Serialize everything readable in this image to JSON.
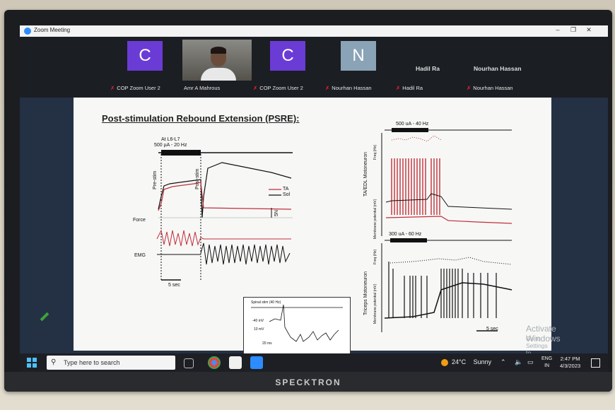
{
  "window": {
    "title": "Zoom Meeting",
    "minimize": "–",
    "maximize": "❐",
    "close": "✕"
  },
  "participants": [
    {
      "initial": "C",
      "name": "COP Zoom User 2",
      "color": "#6b3bd6"
    },
    {
      "name": "Amr A Mahrous"
    },
    {
      "initial": "C",
      "name": "COP Zoom User 2",
      "color": "#6b3bd6"
    },
    {
      "initial": "N",
      "name": "Nourhan Hassan",
      "color": "#8aa3b6"
    },
    {
      "title": "Hadil Ra",
      "name": "Hadil Ra"
    },
    {
      "title": "Nourhan Hassan",
      "name": "Nourhan Hassan"
    }
  ],
  "slide": {
    "title": "Post-stimulation Rebound Extension (PSRE):",
    "left_figure": {
      "stim_site": "At L6-L7",
      "stim_params": "500 µA - 20 Hz",
      "pre_stim": "Pre-stim",
      "post_stim": "Post-stim",
      "legend_ta": "TA",
      "legend_sol": "Sol",
      "scale": "5N",
      "force": "Force",
      "emg": "EMG",
      "time_scale": "5 sec"
    },
    "right_top": {
      "stim": "500 uA - 40 Hz",
      "ylabel_main": "TA/EDL Motoneuron",
      "ylabel_freq": "Freq (Hz)",
      "ylabel_mp": "Membrane potential (mV)",
      "freq_ticks": [
        "70",
        "60",
        "50",
        "40",
        "30",
        "20",
        "10",
        "0"
      ],
      "mp_ticks": [
        "20",
        "10",
        "0",
        "-10",
        "-20",
        "-30",
        "-40",
        "-50",
        "-60",
        "-70",
        "-80"
      ]
    },
    "right_bottom": {
      "stim": "300 uA - 60 Hz",
      "ylabel_main": "Triceps Motoneuron",
      "ylabel_freq": "Freq (Hz)",
      "ylabel_mp": "Membrane potential (mV)",
      "freq_ticks": [
        "70",
        "60",
        "50",
        "40",
        "30",
        "20",
        "10",
        "0"
      ],
      "mp_ticks": [
        "20",
        "10",
        "0",
        "-10",
        "-20",
        "-30",
        "-40",
        "-50",
        "-60",
        "-70"
      ],
      "time_scale": "5 sec"
    },
    "inset": {
      "label": "Spinal stim (40 Hz)",
      "mv": "-40 mV",
      "scale_v": "10 mV",
      "scale_t": "20 ms"
    },
    "watermark_title": "Activate Windows",
    "watermark_sub": "Go to Settings to activate Windows."
  },
  "taskbar": {
    "search_placeholder": "Type here to search",
    "temperature": "24°C",
    "weather": "Sunny",
    "lang1": "ENG",
    "lang2": "IN",
    "time": "2:47 PM",
    "date": "4/3/2023"
  },
  "tv_brand": "SPECKTRON"
}
